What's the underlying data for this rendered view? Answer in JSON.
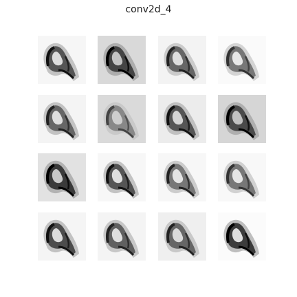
{
  "figure": {
    "title": "conv2d_4"
  },
  "feature_maps": [
    {
      "index": 1,
      "background": "#f6f6f6"
    },
    {
      "index": 2,
      "background": "#d9d9d9"
    },
    {
      "index": 3,
      "background": "#f3f3f3"
    },
    {
      "index": 4,
      "background": "#fafafa"
    },
    {
      "index": 5,
      "background": "#f4f4f4"
    },
    {
      "index": 6,
      "background": "#dadada"
    },
    {
      "index": 7,
      "background": "#ececec"
    },
    {
      "index": 8,
      "background": "#d6d6d6"
    },
    {
      "index": 9,
      "background": "#e2e2e2"
    },
    {
      "index": 10,
      "background": "#f7f7f7"
    },
    {
      "index": 11,
      "background": "#f7f7f7"
    },
    {
      "index": 12,
      "background": "#f8f8f8"
    },
    {
      "index": 13,
      "background": "#f5f5f5"
    },
    {
      "index": 14,
      "background": "#f4f4f4"
    },
    {
      "index": 15,
      "background": "#efefef"
    },
    {
      "index": 16,
      "background": "#fbfbfb"
    }
  ]
}
